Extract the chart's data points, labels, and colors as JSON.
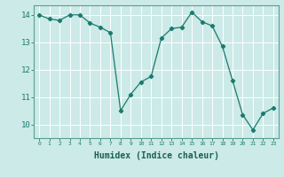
{
  "x": [
    0,
    1,
    2,
    3,
    4,
    5,
    6,
    7,
    8,
    9,
    10,
    11,
    12,
    13,
    14,
    15,
    16,
    17,
    18,
    19,
    20,
    21,
    22,
    23
  ],
  "y": [
    14.0,
    13.85,
    13.8,
    14.0,
    14.0,
    13.7,
    13.55,
    13.35,
    10.5,
    11.1,
    11.55,
    11.75,
    13.15,
    13.5,
    13.55,
    14.1,
    13.75,
    13.6,
    12.85,
    11.6,
    10.35,
    9.8,
    10.4,
    10.6
  ],
  "line_color": "#1a7a6e",
  "marker": "D",
  "marker_size": 2.2,
  "bg_color": "#cceae7",
  "grid_color": "#ffffff",
  "tick_color": "#1a7a6e",
  "xlabel": "Humidex (Indice chaleur)",
  "xlabel_fontsize": 7,
  "xlim": [
    -0.5,
    23.5
  ],
  "ylim": [
    9.5,
    14.35
  ],
  "yticks": [
    10,
    11,
    12,
    13,
    14
  ],
  "xticks": [
    0,
    1,
    2,
    3,
    4,
    5,
    6,
    7,
    8,
    9,
    10,
    11,
    12,
    13,
    14,
    15,
    16,
    17,
    18,
    19,
    20,
    21,
    22,
    23
  ],
  "spine_color": "#5aa090",
  "label_color": "#1a5f55"
}
